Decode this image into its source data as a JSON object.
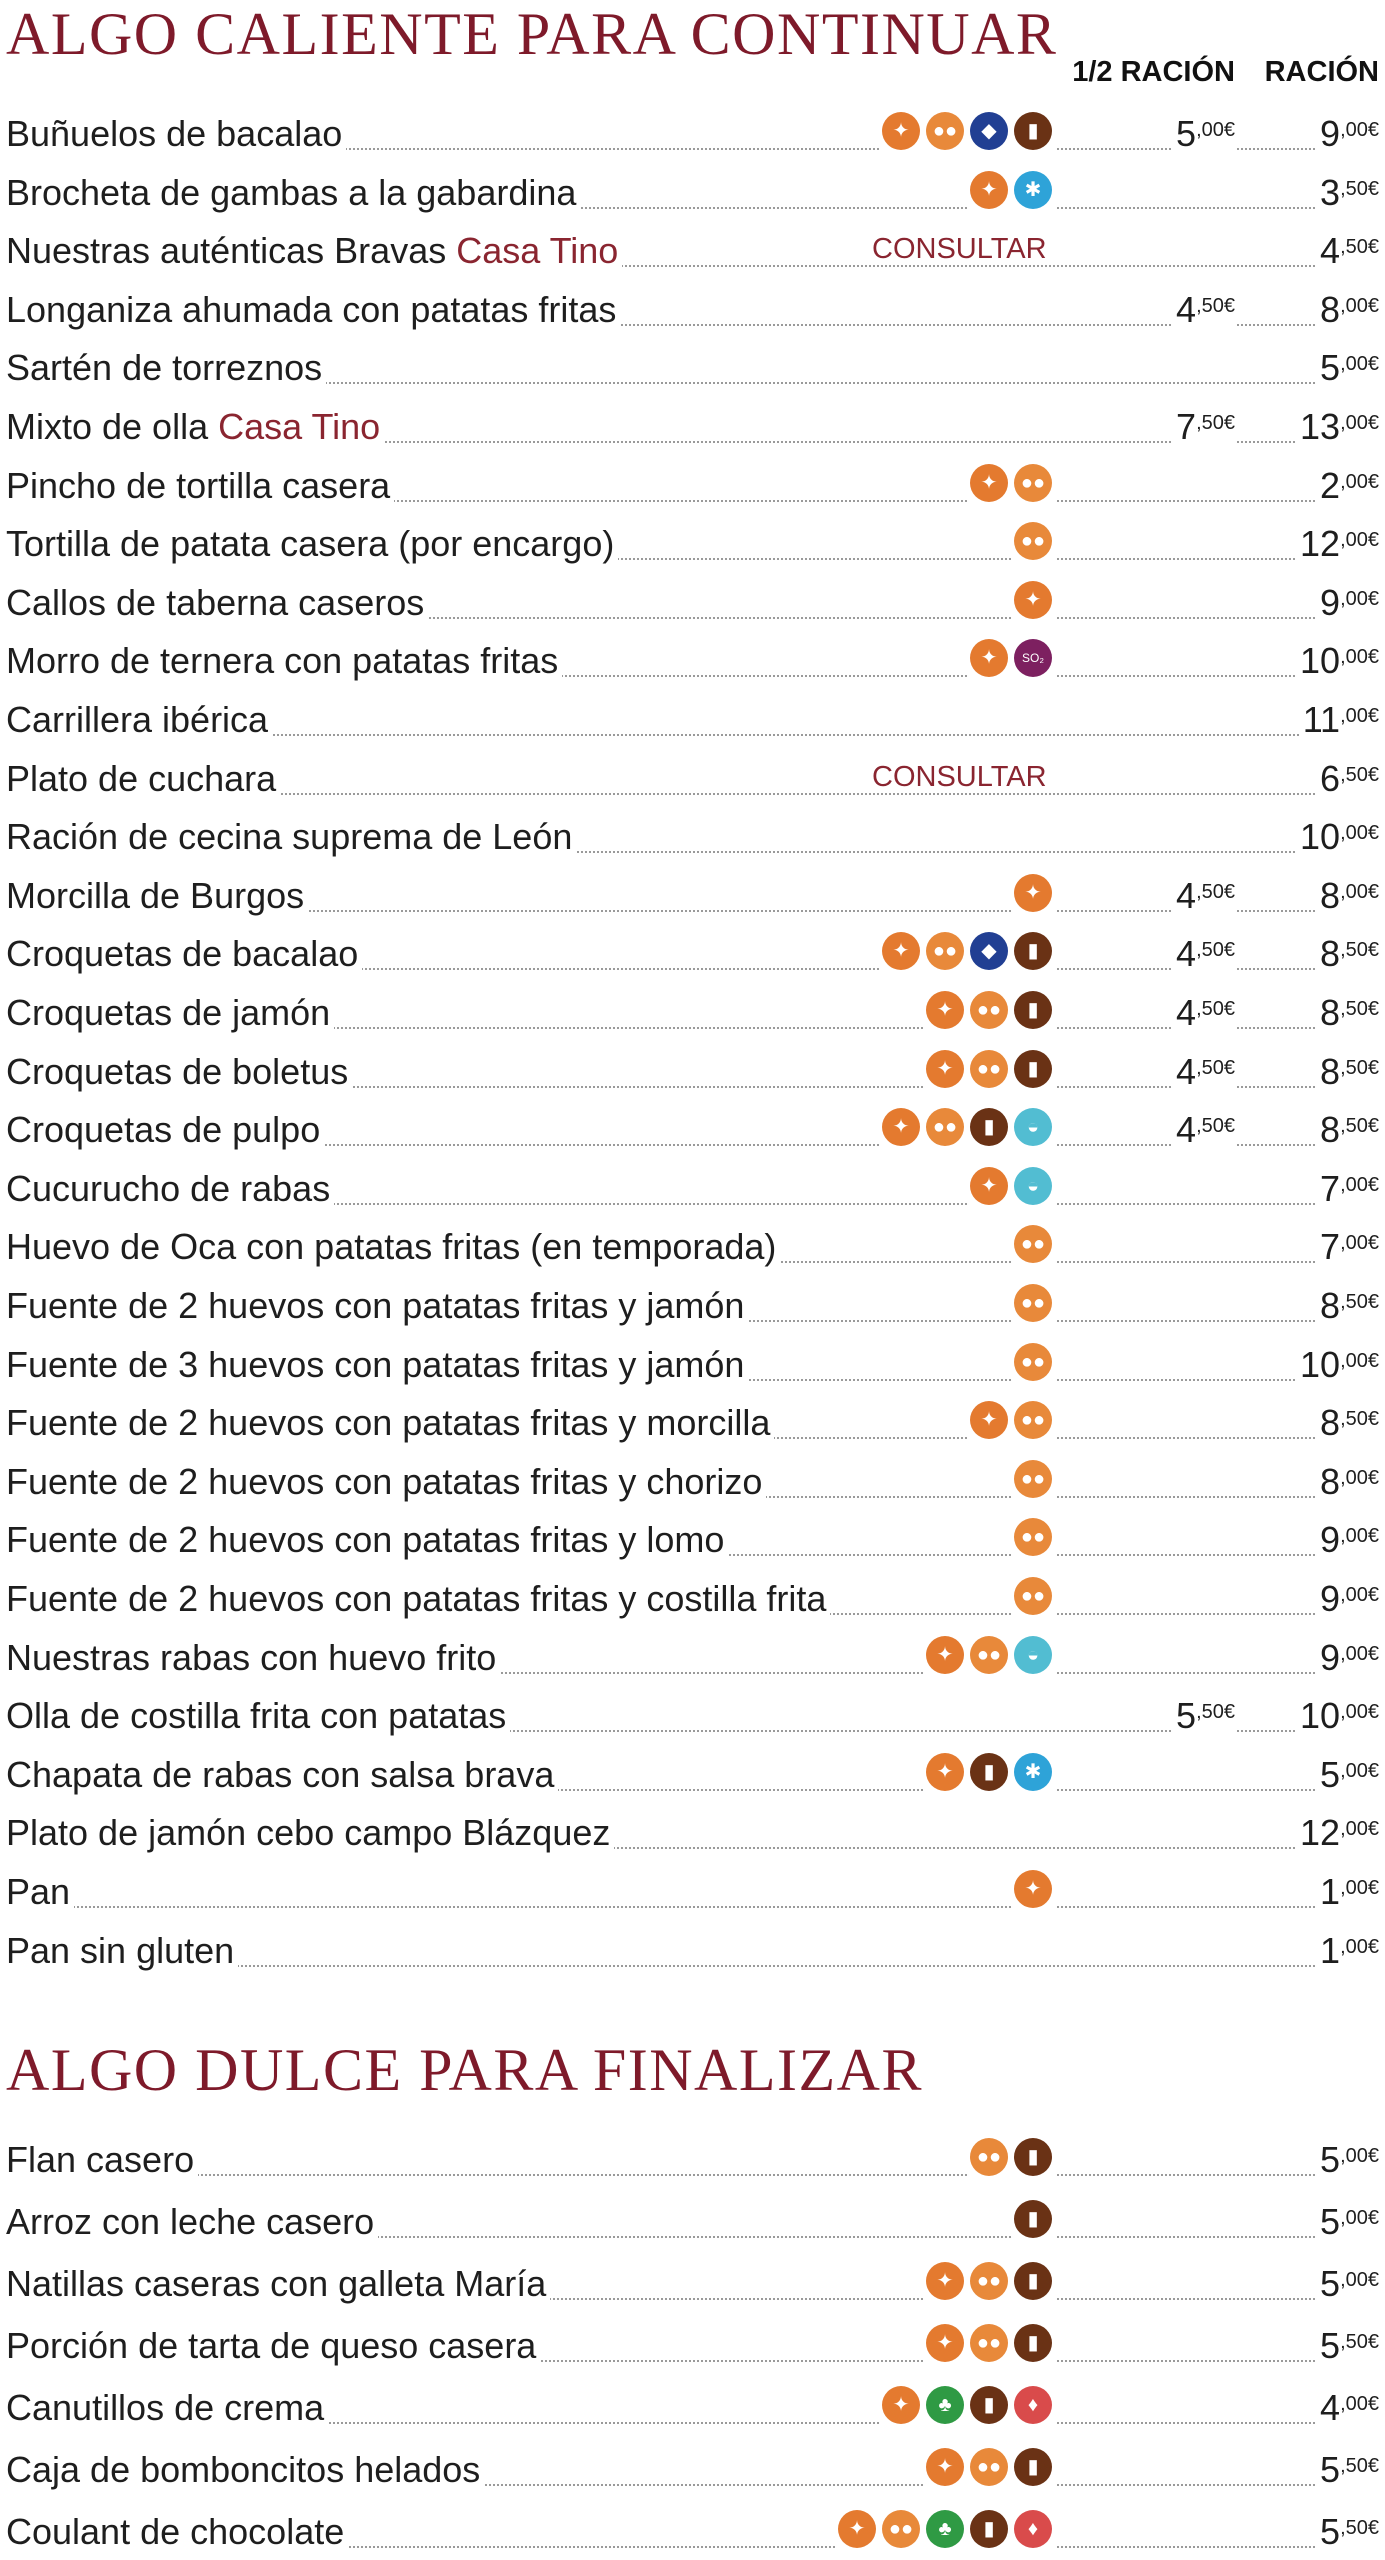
{
  "sections": [
    {
      "title": "ALGO CALIENTE PARA CONTINUAR",
      "half_header": "1/2 RACIÓN",
      "full_header": "RACIÓN",
      "items": [
        {
          "name": "Buñuelos de bacalao",
          "icons": [
            "gluten-icon",
            "egg-icon",
            "fish-icon",
            "milk-icon"
          ],
          "half": "5",
          "half_cents": ",00€",
          "full": "9",
          "full_cents": ",00€"
        },
        {
          "name": "Brocheta de gambas a la gabardina",
          "icons": [
            "gluten-icon",
            "crustacean-icon"
          ],
          "full": "3",
          "full_cents": ",50€"
        },
        {
          "name": "Nuestras auténticas Bravas ",
          "name_highlight": "Casa Tino",
          "consult": "CONSULTAR",
          "full": "4",
          "full_cents": ",50€"
        },
        {
          "name": "Longaniza ahumada con patatas fritas",
          "half": "4",
          "half_cents": ",50€",
          "full": "8",
          "full_cents": ",00€"
        },
        {
          "name": "Sartén de torreznos",
          "full": "5",
          "full_cents": ",00€"
        },
        {
          "name": "Mixto de olla ",
          "name_highlight": "Casa Tino",
          "half": "7",
          "half_cents": ",50€",
          "full": "13",
          "full_cents": ",00€"
        },
        {
          "name": "Pincho de tortilla casera",
          "icons": [
            "gluten-icon",
            "egg-icon"
          ],
          "full": "2",
          "full_cents": ",00€"
        },
        {
          "name": "Tortilla de patata casera (por encargo)",
          "icons": [
            "egg-icon"
          ],
          "full": "12",
          "full_cents": ",00€"
        },
        {
          "name": "Callos de taberna caseros",
          "icons": [
            "gluten-icon"
          ],
          "full": "9",
          "full_cents": ",00€"
        },
        {
          "name": "Morro de ternera con patatas fritas",
          "icons": [
            "gluten-icon",
            "sulphite-icon"
          ],
          "full": "10",
          "full_cents": ",00€"
        },
        {
          "name": "Carrillera ibérica",
          "full": "11",
          "full_cents": ",00€"
        },
        {
          "name": "Plato de cuchara",
          "consult": "CONSULTAR",
          "full": "6",
          "full_cents": ",50€"
        },
        {
          "name": "Ración de cecina suprema de León",
          "full": "10",
          "full_cents": ",00€"
        },
        {
          "name": "Morcilla de Burgos",
          "icons": [
            "gluten-icon"
          ],
          "half": "4",
          "half_cents": ",50€",
          "full": "8",
          "full_cents": ",00€"
        },
        {
          "name": "Croquetas de bacalao",
          "icons": [
            "gluten-icon",
            "egg-icon",
            "fish-icon",
            "milk-icon"
          ],
          "half": "4",
          "half_cents": ",50€",
          "full": "8",
          "full_cents": ",50€"
        },
        {
          "name": "Croquetas de jamón",
          "icons": [
            "gluten-icon",
            "egg-icon",
            "milk-icon"
          ],
          "half": "4",
          "half_cents": ",50€",
          "full": "8",
          "full_cents": ",50€"
        },
        {
          "name": "Croquetas de boletus",
          "icons": [
            "gluten-icon",
            "egg-icon",
            "milk-icon"
          ],
          "half": "4",
          "half_cents": ",50€",
          "full": "8",
          "full_cents": ",50€"
        },
        {
          "name": "Croquetas de pulpo",
          "icons": [
            "gluten-icon",
            "egg-icon",
            "milk-icon",
            "mollusc-icon"
          ],
          "half": "4",
          "half_cents": ",50€",
          "full": "8",
          "full_cents": ",50€"
        },
        {
          "name": "Cucurucho de rabas",
          "icons": [
            "gluten-icon",
            "mollusc-icon"
          ],
          "full": "7",
          "full_cents": ",00€"
        },
        {
          "name": "Huevo de Oca con patatas fritas (en temporada)",
          "icons": [
            "egg-icon"
          ],
          "full": "7",
          "full_cents": ",00€"
        },
        {
          "name": "Fuente de 2 huevos con patatas fritas y jamón",
          "icons": [
            "egg-icon"
          ],
          "full": "8",
          "full_cents": ",50€"
        },
        {
          "name": "Fuente de 3 huevos con patatas fritas y jamón",
          "icons": [
            "egg-icon"
          ],
          "full": "10",
          "full_cents": ",00€"
        },
        {
          "name": "Fuente de 2 huevos con patatas fritas y morcilla",
          "icons": [
            "gluten-icon",
            "egg-icon"
          ],
          "full": "8",
          "full_cents": ",50€"
        },
        {
          "name": "Fuente de 2 huevos con patatas fritas y chorizo",
          "icons": [
            "egg-icon"
          ],
          "full": "8",
          "full_cents": ",00€"
        },
        {
          "name": "Fuente de 2 huevos con patatas fritas y lomo",
          "icons": [
            "egg-icon"
          ],
          "full": "9",
          "full_cents": ",00€"
        },
        {
          "name": "Fuente de 2 huevos con patatas fritas y costilla frita",
          "icons": [
            "egg-icon"
          ],
          "full": "9",
          "full_cents": ",00€"
        },
        {
          "name": "Nuestras rabas con huevo frito",
          "icons": [
            "gluten-icon",
            "egg-icon",
            "mollusc-icon"
          ],
          "full": "9",
          "full_cents": ",00€"
        },
        {
          "name": "Olla de costilla frita con patatas",
          "half": "5",
          "half_cents": ",50€",
          "full": "10",
          "full_cents": ",00€"
        },
        {
          "name": "Chapata de rabas con salsa brava",
          "icons": [
            "gluten-icon",
            "milk-icon",
            "crustacean-icon"
          ],
          "full": "5",
          "full_cents": ",00€"
        },
        {
          "name": "Plato de jamón cebo campo Blázquez",
          "full": "12",
          "full_cents": ",00€"
        },
        {
          "name": "Pan",
          "icons": [
            "gluten-icon"
          ],
          "full": "1",
          "full_cents": ",00€"
        },
        {
          "name": "Pan sin gluten",
          "full": "1",
          "full_cents": ",00€"
        }
      ]
    },
    {
      "title": "ALGO DULCE PARA FINALIZAR",
      "items": [
        {
          "name": "Flan casero",
          "icons": [
            "egg-icon",
            "milk-icon"
          ],
          "full": "5",
          "full_cents": ",00€"
        },
        {
          "name": "Arroz con leche casero",
          "icons": [
            "milk-icon"
          ],
          "full": "5",
          "full_cents": ",00€"
        },
        {
          "name": "Natillas caseras con galleta María",
          "icons": [
            "gluten-icon",
            "egg-icon",
            "milk-icon"
          ],
          "full": "5",
          "full_cents": ",00€"
        },
        {
          "name": "Porción de tarta de queso casera",
          "icons": [
            "gluten-icon",
            "egg-icon",
            "milk-icon"
          ],
          "full": "5",
          "full_cents": ",50€"
        },
        {
          "name": "Canutillos de crema",
          "icons": [
            "gluten-icon",
            "nuts-icon",
            "milk-icon",
            "soy-icon"
          ],
          "full": "4",
          "full_cents": ",00€"
        },
        {
          "name": "Caja de bomboncitos helados",
          "icons": [
            "gluten-icon",
            "egg-icon",
            "milk-icon"
          ],
          "full": "5",
          "full_cents": ",50€"
        },
        {
          "name": "Coulant de chocolate",
          "icons": [
            "gluten-icon",
            "egg-icon",
            "nuts-icon",
            "milk-icon",
            "soy-icon"
          ],
          "full": "5",
          "full_cents": ",50€"
        }
      ]
    }
  ]
}
